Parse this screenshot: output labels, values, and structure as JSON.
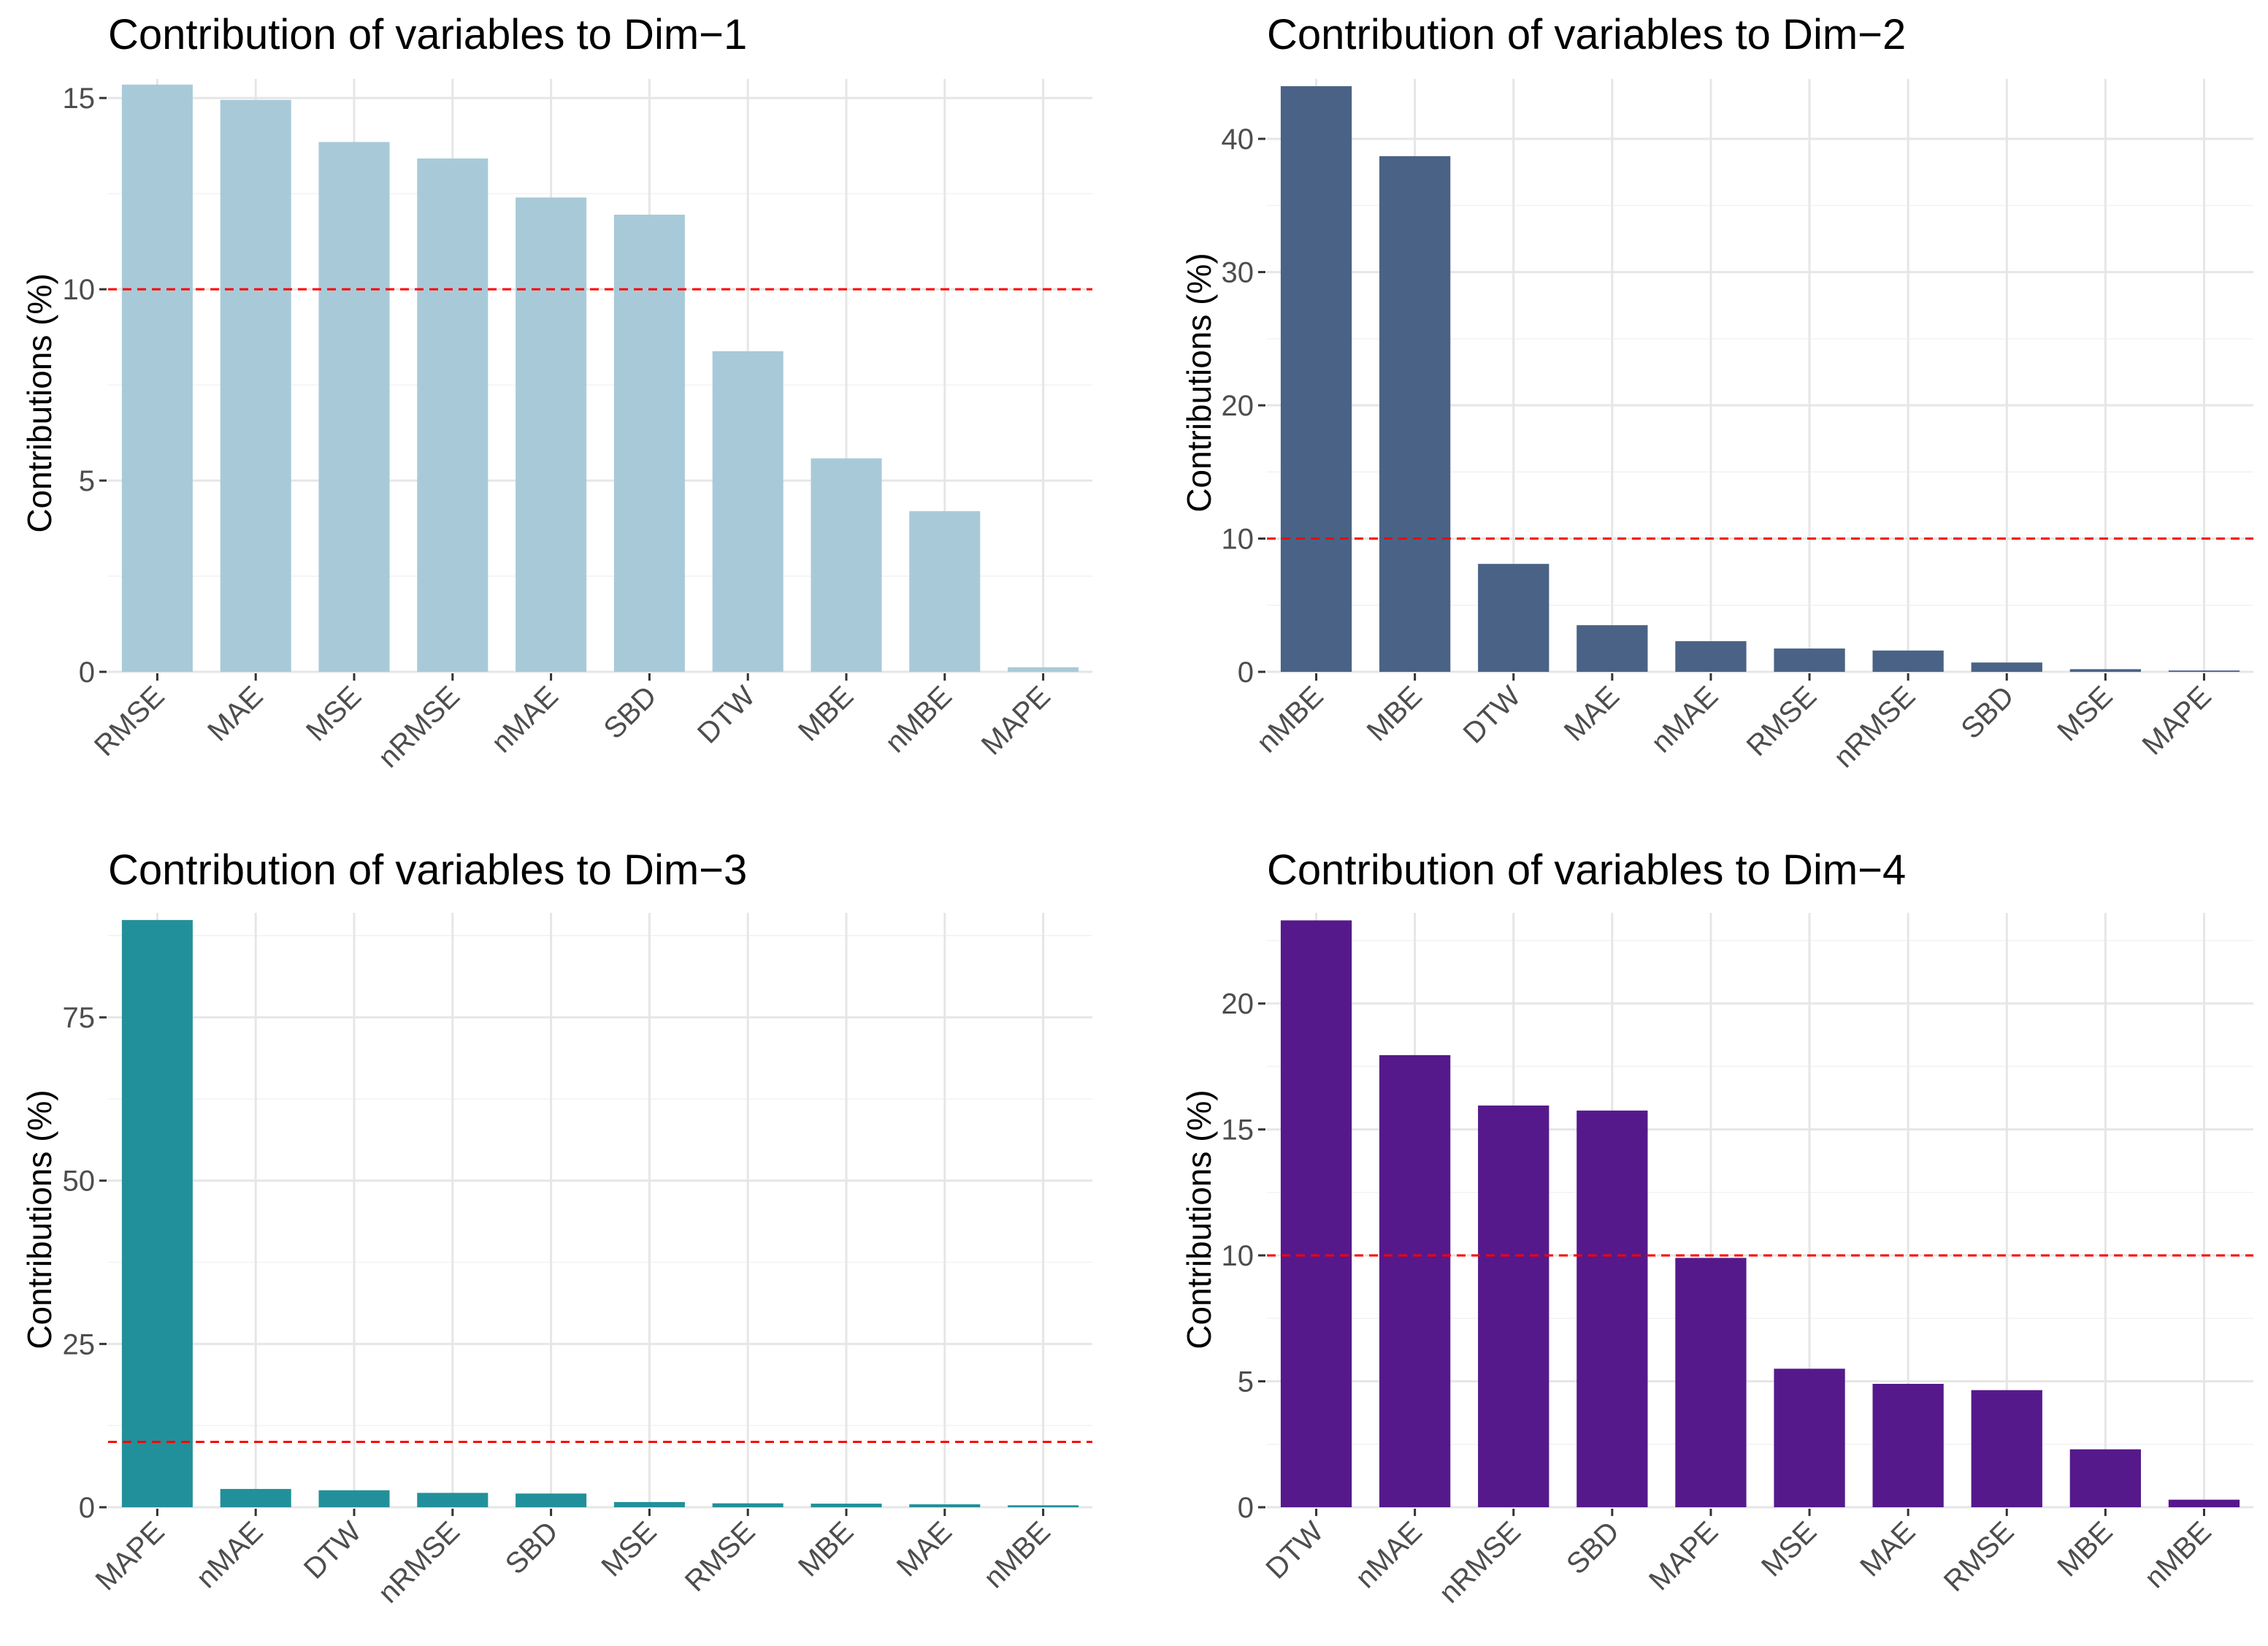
{
  "figure": {
    "background": "#ffffff"
  },
  "chart_data": [
    {
      "type": "bar",
      "title": "Contribution of variables to Dim−1",
      "xlabel": "",
      "ylabel": "Contributions (%)",
      "categories": [
        "RMSE",
        "MAE",
        "MSE",
        "nRMSE",
        "nMAE",
        "SBD",
        "DTW",
        "MBE",
        "nMBE",
        "MAPE"
      ],
      "values": [
        15.35,
        14.95,
        13.85,
        13.42,
        12.4,
        11.95,
        8.38,
        5.58,
        4.2,
        0.12
      ],
      "ylim": [
        0,
        15.5
      ],
      "yticks": [
        0,
        5,
        10,
        15
      ],
      "ytick_labels": [
        "0",
        "5",
        "10",
        "15"
      ],
      "reference_line": {
        "value": 10,
        "color": "#ff0000",
        "style": "dashed"
      },
      "bar_color": "#a8cad8",
      "grid": true
    },
    {
      "type": "bar",
      "title": "Contribution of variables to Dim−2",
      "xlabel": "",
      "ylabel": "Contributions (%)",
      "categories": [
        "nMBE",
        "MBE",
        "DTW",
        "MAE",
        "nMAE",
        "RMSE",
        "nRMSE",
        "SBD",
        "MSE",
        "MAPE"
      ],
      "values": [
        43.95,
        38.7,
        8.1,
        3.5,
        2.3,
        1.75,
        1.6,
        0.7,
        0.2,
        0.1
      ],
      "ylim": [
        0,
        44.5
      ],
      "yticks": [
        0,
        10,
        20,
        30,
        40
      ],
      "ytick_labels": [
        "0",
        "10",
        "20",
        "30",
        "40"
      ],
      "reference_line": {
        "value": 10,
        "color": "#ff0000",
        "style": "dashed"
      },
      "bar_color": "#4a6286",
      "grid": true
    },
    {
      "type": "bar",
      "title": "Contribution of variables to Dim−3",
      "xlabel": "",
      "ylabel": "Contributions (%)",
      "categories": [
        "MAPE",
        "nMAE",
        "DTW",
        "nRMSE",
        "SBD",
        "MSE",
        "RMSE",
        "MBE",
        "MAE",
        "nMBE"
      ],
      "values": [
        89.9,
        2.8,
        2.6,
        2.2,
        2.1,
        0.8,
        0.6,
        0.55,
        0.45,
        0.3
      ],
      "ylim": [
        0,
        91
      ],
      "yticks": [
        0,
        25,
        50,
        75
      ],
      "ytick_labels": [
        "0",
        "25",
        "50",
        "75"
      ],
      "reference_line": {
        "value": 10,
        "color": "#ff0000",
        "style": "dashed"
      },
      "bar_color": "#22909a",
      "grid": true
    },
    {
      "type": "bar",
      "title": "Contribution of variables to Dim−4",
      "xlabel": "",
      "ylabel": "Contributions (%)",
      "categories": [
        "DTW",
        "nMAE",
        "nRMSE",
        "SBD",
        "MAPE",
        "MSE",
        "MAE",
        "RMSE",
        "MBE",
        "nMBE"
      ],
      "values": [
        23.3,
        17.95,
        15.95,
        15.75,
        9.9,
        5.5,
        4.9,
        4.65,
        2.3,
        0.3
      ],
      "ylim": [
        0,
        23.6
      ],
      "yticks": [
        0,
        5,
        10,
        15,
        20
      ],
      "ytick_labels": [
        "0",
        "5",
        "10",
        "15",
        "20"
      ],
      "reference_line": {
        "value": 10,
        "color": "#ff0000",
        "style": "dashed"
      },
      "bar_color": "#55198c",
      "grid": true
    }
  ]
}
